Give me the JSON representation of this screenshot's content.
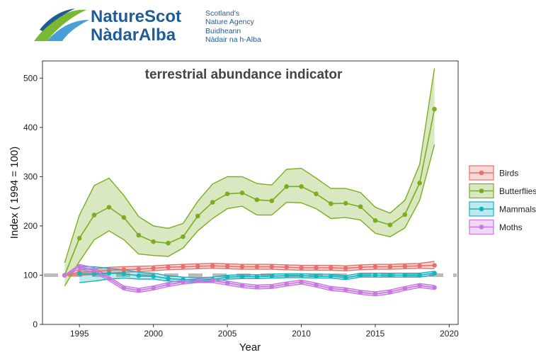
{
  "logo": {
    "brand_line1": "NatureScot",
    "brand_line2": "NàdarAlba",
    "tagline_en_1": "Scotland's",
    "tagline_en_2": "Nature Agency",
    "tagline_gd_1": "Buidheann",
    "tagline_gd_2": "Nàdair na h-Alba",
    "colors": {
      "navy": "#1f5b96",
      "green": "#79b833",
      "light_blue": "#4a9fd8"
    }
  },
  "chart_data": {
    "type": "line",
    "title": "terrestrial abundance indicator",
    "xlabel": "Year",
    "ylabel": "Index ( 1994 = 100)",
    "xlim": [
      1992.5,
      2020.6
    ],
    "ylim": [
      0,
      535
    ],
    "xticks": [
      1995,
      2000,
      2005,
      2010,
      2015,
      2020
    ],
    "yticks": [
      0,
      100,
      200,
      300,
      400,
      500
    ],
    "grid": false,
    "legend_position": "right",
    "reference_line": {
      "y": 100,
      "style": "dashed",
      "color": "#bbbbbb"
    },
    "x": [
      1994,
      1995,
      1996,
      1997,
      1998,
      1999,
      2000,
      2001,
      2002,
      2003,
      2004,
      2005,
      2006,
      2007,
      2008,
      2009,
      2010,
      2011,
      2012,
      2013,
      2014,
      2015,
      2016,
      2017,
      2018,
      2019
    ],
    "series": [
      {
        "name": "Birds",
        "color": "#e8706a",
        "values": [
          100,
          106,
          107,
          110,
          111,
          112,
          114,
          116,
          117,
          118,
          119,
          118,
          117,
          117,
          117,
          116,
          115,
          115,
          115,
          114,
          116,
          117,
          117,
          118,
          119,
          120
        ],
        "lower": [
          100,
          100,
          101,
          104,
          106,
          107,
          109,
          111,
          112,
          113,
          114,
          113,
          112,
          112,
          112,
          111,
          110,
          110,
          110,
          109,
          111,
          112,
          112,
          113,
          114,
          113
        ],
        "upper": [
          100,
          112,
          113,
          116,
          117,
          118,
          119,
          121,
          122,
          123,
          124,
          123,
          122,
          122,
          122,
          121,
          120,
          120,
          120,
          119,
          121,
          122,
          122,
          123,
          124,
          128
        ]
      },
      {
        "name": "Butterflies",
        "color": "#7aad20",
        "values": [
          100,
          175,
          222,
          238,
          217,
          181,
          168,
          165,
          178,
          220,
          248,
          265,
          267,
          253,
          251,
          280,
          280,
          265,
          245,
          246,
          239,
          211,
          202,
          223,
          287,
          437
        ],
        "lower": [
          78,
          128,
          172,
          190,
          172,
          143,
          140,
          138,
          155,
          190,
          215,
          235,
          240,
          222,
          222,
          248,
          247,
          235,
          215,
          217,
          212,
          185,
          178,
          196,
          252,
          365
        ],
        "upper": [
          125,
          222,
          282,
          297,
          262,
          219,
          200,
          195,
          205,
          250,
          285,
          300,
          300,
          286,
          283,
          315,
          317,
          297,
          276,
          276,
          268,
          238,
          226,
          252,
          325,
          520
        ]
      },
      {
        "name": "Mammals",
        "color": "#17b3bd",
        "values": [
          null,
          103,
          103,
          104,
          103,
          99,
          98,
          93,
          91,
          90,
          91,
          96,
          97,
          97,
          98,
          99,
          99,
          98,
          98,
          95,
          100,
          100,
          100,
          100,
          100,
          104
        ],
        "lower": [
          null,
          85,
          88,
          92,
          94,
          92,
          92,
          88,
          86,
          86,
          87,
          92,
          93,
          93,
          94,
          95,
          95,
          94,
          94,
          91,
          96,
          96,
          96,
          96,
          96,
          100
        ],
        "upper": [
          null,
          118,
          117,
          114,
          111,
          106,
          104,
          99,
          96,
          95,
          96,
          100,
          101,
          101,
          102,
          103,
          103,
          102,
          102,
          99,
          104,
          104,
          104,
          104,
          104,
          108
        ]
      },
      {
        "name": "Moths",
        "color": "#c678e0",
        "values": [
          100,
          117,
          110,
          93,
          74,
          69,
          74,
          81,
          86,
          89,
          89,
          84,
          79,
          76,
          77,
          82,
          86,
          80,
          73,
          70,
          65,
          62,
          66,
          73,
          79,
          75
        ],
        "lower": [
          100,
          112,
          105,
          89,
          70,
          65,
          70,
          77,
          82,
          85,
          85,
          80,
          75,
          72,
          73,
          78,
          82,
          76,
          69,
          66,
          61,
          58,
          62,
          69,
          75,
          71
        ],
        "upper": [
          100,
          122,
          115,
          97,
          78,
          73,
          78,
          85,
          90,
          93,
          93,
          88,
          83,
          80,
          81,
          86,
          90,
          84,
          77,
          74,
          69,
          66,
          70,
          77,
          83,
          79
        ]
      }
    ]
  }
}
